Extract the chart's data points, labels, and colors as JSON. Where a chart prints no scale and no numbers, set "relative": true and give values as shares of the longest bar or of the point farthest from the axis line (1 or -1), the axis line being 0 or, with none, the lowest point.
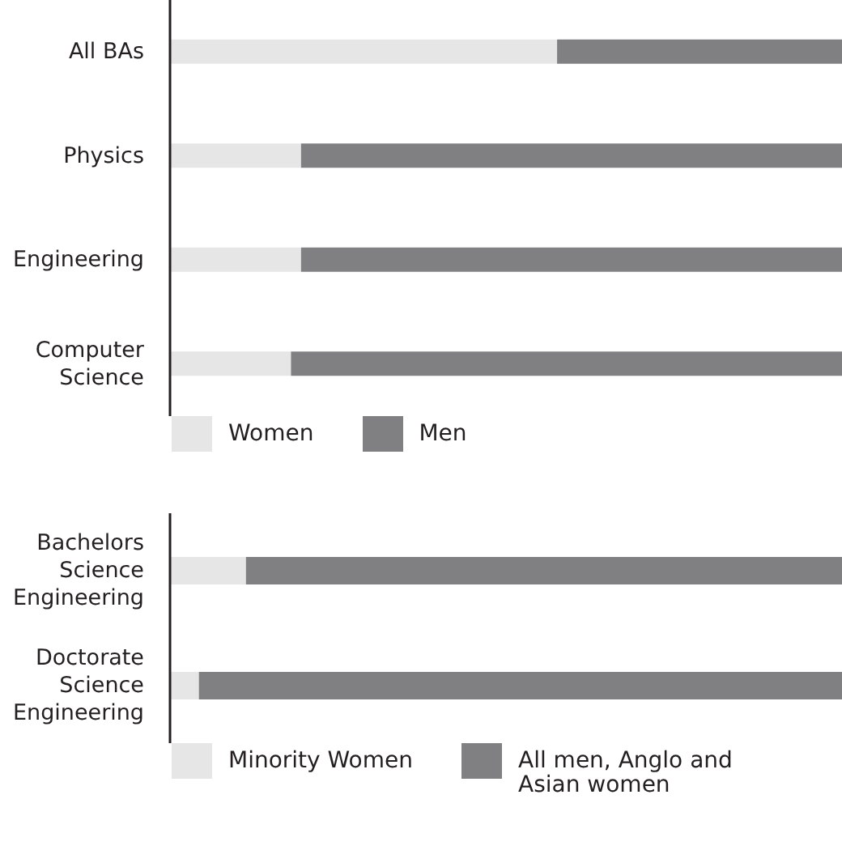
{
  "chart_data": [
    {
      "type": "bar",
      "orientation": "horizontal",
      "stacked": true,
      "relative": true,
      "legend": "bottom",
      "categories": [
        "All BAs",
        "Physics",
        "Engineering",
        "Computer Science"
      ],
      "series": [
        {
          "name": "Women",
          "color": "#e6e6e7",
          "values": [
            0.576,
            0.195,
            0.195,
            0.18
          ]
        },
        {
          "name": "Men",
          "color": "#808083",
          "values": [
            0.424,
            0.805,
            0.805,
            0.82
          ]
        }
      ]
    },
    {
      "type": "bar",
      "orientation": "horizontal",
      "stacked": true,
      "relative": true,
      "legend": "bottom",
      "categories": [
        "Bachelors Science Engineering",
        "Doctorate Science Engineering"
      ],
      "series": [
        {
          "name": "Minority Women",
          "color": "#e6e6e7",
          "values": [
            0.113,
            0.043
          ]
        },
        {
          "name": "All men, Anglo and Asian women",
          "color": "#808083",
          "values": [
            0.887,
            0.957
          ]
        }
      ]
    }
  ]
}
